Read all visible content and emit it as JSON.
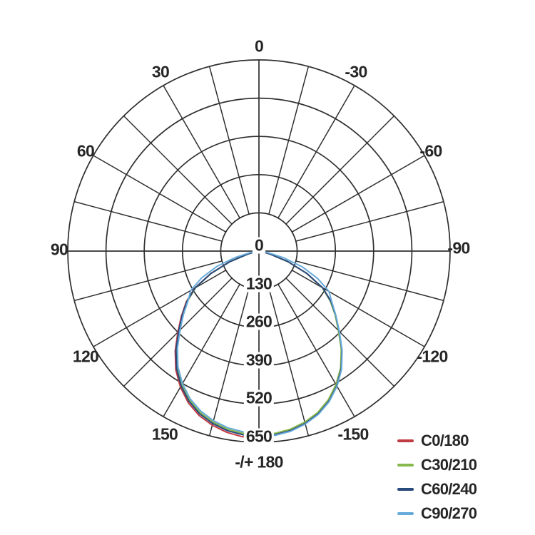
{
  "page": {
    "background": "#ffffff"
  },
  "chart_data": {
    "type": "polar",
    "subtype": "photometric-luminous-intensity",
    "title": "",
    "angle_unit": "deg",
    "angle_zero_position": "bottom",
    "radial_max": 650,
    "radial_ticks": [
      "0",
      "130",
      "260",
      "390",
      "520",
      "650"
    ],
    "grid": {
      "rings": 5,
      "spoke_step_deg": 15,
      "color": "#2f2f2f",
      "on": true
    },
    "angle_labels": [
      {
        "angle": 180,
        "label": "-/+ 180"
      },
      {
        "angle": -150,
        "label": "-150"
      },
      {
        "angle": 150,
        "label": "150"
      },
      {
        "angle": -120,
        "label": "-120"
      },
      {
        "angle": 120,
        "label": "120"
      },
      {
        "angle": -90,
        "label": "-90"
      },
      {
        "angle": 90,
        "label": "90"
      },
      {
        "angle": -60,
        "label": "-60"
      },
      {
        "angle": 60,
        "label": "60"
      },
      {
        "angle": -30,
        "label": "-30"
      },
      {
        "angle": 30,
        "label": "30"
      },
      {
        "angle": 0,
        "label": "0"
      }
    ],
    "legend_position": "bottom-right",
    "series": [
      {
        "name": "C0/180",
        "color": "#c13b43",
        "points": [
          [
            -105,
            0
          ],
          [
            -100,
            0
          ],
          [
            -95,
            1
          ],
          [
            -90,
            2
          ],
          [
            -85,
            5
          ],
          [
            -80,
            13
          ],
          [
            -75,
            40
          ],
          [
            -70,
            106
          ],
          [
            -65,
            182
          ],
          [
            -60,
            253
          ],
          [
            -55,
            302
          ],
          [
            -50,
            344
          ],
          [
            -45,
            390
          ],
          [
            -40,
            443
          ],
          [
            -35,
            493
          ],
          [
            -30,
            534
          ],
          [
            -25,
            569
          ],
          [
            -20,
            595
          ],
          [
            -15,
            613
          ],
          [
            -10,
            626
          ],
          [
            -5,
            634
          ],
          [
            0,
            630
          ],
          [
            5,
            624
          ],
          [
            10,
            617
          ],
          [
            15,
            604
          ],
          [
            20,
            586
          ],
          [
            25,
            560
          ],
          [
            30,
            526
          ],
          [
            35,
            486
          ],
          [
            40,
            437
          ],
          [
            45,
            384
          ],
          [
            50,
            339
          ],
          [
            55,
            297
          ],
          [
            60,
            249
          ],
          [
            65,
            179
          ],
          [
            70,
            105
          ],
          [
            75,
            40
          ],
          [
            80,
            13
          ],
          [
            85,
            5
          ],
          [
            90,
            2
          ],
          [
            95,
            1
          ],
          [
            100,
            0
          ],
          [
            105,
            0
          ]
        ]
      },
      {
        "name": "C30/210",
        "color": "#86b94e",
        "points": [
          [
            -105,
            0
          ],
          [
            -100,
            0
          ],
          [
            -95,
            1
          ],
          [
            -90,
            2
          ],
          [
            -85,
            5
          ],
          [
            -80,
            13
          ],
          [
            -75,
            40
          ],
          [
            -70,
            104
          ],
          [
            -65,
            179
          ],
          [
            -60,
            248
          ],
          [
            -55,
            296
          ],
          [
            -50,
            338
          ],
          [
            -45,
            382
          ],
          [
            -40,
            435
          ],
          [
            -35,
            484
          ],
          [
            -30,
            524
          ],
          [
            -25,
            558
          ],
          [
            -20,
            584
          ],
          [
            -15,
            602
          ],
          [
            -10,
            615
          ],
          [
            -5,
            622
          ],
          [
            0,
            624
          ],
          [
            5,
            622
          ],
          [
            10,
            615
          ],
          [
            15,
            602
          ],
          [
            20,
            584
          ],
          [
            25,
            558
          ],
          [
            30,
            524
          ],
          [
            35,
            484
          ],
          [
            40,
            435
          ],
          [
            45,
            382
          ],
          [
            50,
            338
          ],
          [
            55,
            296
          ],
          [
            60,
            248
          ],
          [
            65,
            179
          ],
          [
            70,
            104
          ],
          [
            75,
            40
          ],
          [
            80,
            13
          ],
          [
            85,
            5
          ],
          [
            90,
            2
          ],
          [
            95,
            1
          ],
          [
            100,
            0
          ],
          [
            105,
            0
          ]
        ]
      },
      {
        "name": "C60/240",
        "color": "#28497c",
        "points": [
          [
            -105,
            0
          ],
          [
            -100,
            0
          ],
          [
            -95,
            1
          ],
          [
            -90,
            2
          ],
          [
            -85,
            5
          ],
          [
            -80,
            13
          ],
          [
            -75,
            40
          ],
          [
            -70,
            105
          ],
          [
            -65,
            180
          ],
          [
            -60,
            251
          ],
          [
            -55,
            299
          ],
          [
            -50,
            341
          ],
          [
            -45,
            386
          ],
          [
            -40,
            439
          ],
          [
            -35,
            488
          ],
          [
            -30,
            529
          ],
          [
            -25,
            563
          ],
          [
            -20,
            589
          ],
          [
            -15,
            607
          ],
          [
            -10,
            620
          ],
          [
            -5,
            627
          ],
          [
            0,
            629
          ],
          [
            5,
            627
          ],
          [
            10,
            620
          ],
          [
            15,
            607
          ],
          [
            20,
            589
          ],
          [
            25,
            563
          ],
          [
            30,
            529
          ],
          [
            35,
            488
          ],
          [
            40,
            439
          ],
          [
            45,
            386
          ],
          [
            50,
            341
          ],
          [
            55,
            299
          ],
          [
            60,
            251
          ],
          [
            65,
            180
          ],
          [
            70,
            105
          ],
          [
            75,
            40
          ],
          [
            80,
            13
          ],
          [
            85,
            5
          ],
          [
            90,
            2
          ],
          [
            95,
            1
          ],
          [
            100,
            0
          ],
          [
            105,
            0
          ]
        ]
      },
      {
        "name": "C90/270",
        "color": "#68abdb",
        "points": [
          [
            -105,
            0
          ],
          [
            -100,
            0
          ],
          [
            -95,
            1
          ],
          [
            -90,
            3
          ],
          [
            -85,
            10
          ],
          [
            -80,
            31
          ],
          [
            -75,
            83
          ],
          [
            -70,
            152
          ],
          [
            -65,
            215
          ],
          [
            -60,
            268
          ],
          [
            -55,
            294
          ],
          [
            -50,
            335
          ],
          [
            -45,
            379
          ],
          [
            -40,
            431
          ],
          [
            -35,
            480
          ],
          [
            -30,
            520
          ],
          [
            -25,
            554
          ],
          [
            -20,
            579
          ],
          [
            -15,
            597
          ],
          [
            -10,
            610
          ],
          [
            -5,
            617
          ],
          [
            0,
            625
          ],
          [
            5,
            629
          ],
          [
            10,
            622
          ],
          [
            15,
            609
          ],
          [
            20,
            591
          ],
          [
            25,
            565
          ],
          [
            30,
            531
          ],
          [
            35,
            490
          ],
          [
            40,
            440
          ],
          [
            45,
            387
          ],
          [
            50,
            342
          ],
          [
            55,
            303
          ],
          [
            60,
            275
          ],
          [
            65,
            220
          ],
          [
            70,
            157
          ],
          [
            75,
            86
          ],
          [
            80,
            32
          ],
          [
            85,
            10
          ],
          [
            90,
            3
          ],
          [
            95,
            1
          ],
          [
            100,
            0
          ],
          [
            105,
            0
          ]
        ]
      }
    ]
  }
}
